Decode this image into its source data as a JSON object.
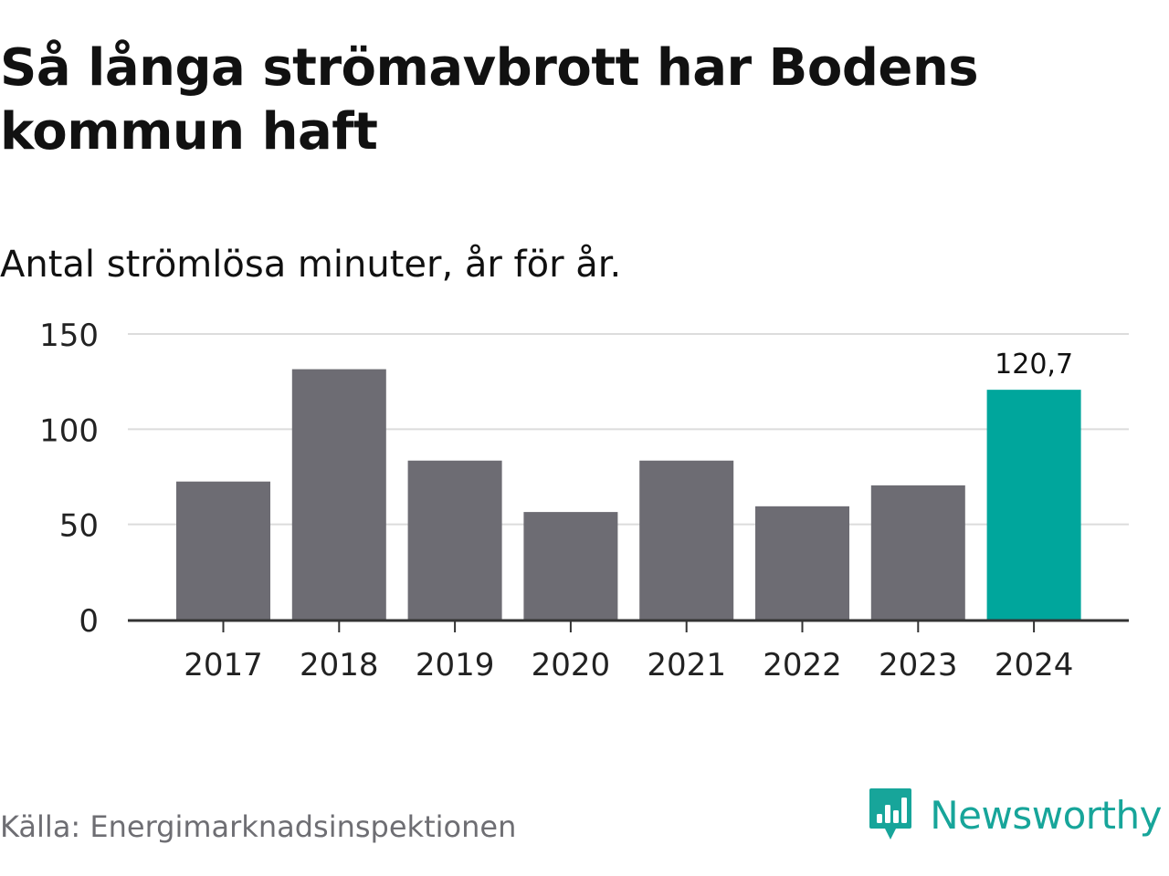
{
  "title": "Så långa strömavbrott har Bodens kommun haft",
  "subtitle": "Antal strömlösa minuter, år för år.",
  "source": "Källa: Energimarknadsinspektionen",
  "brand": {
    "name": "Newsworthy",
    "icon": "newsworthy-logo-icon",
    "color": "#17a59a"
  },
  "colors": {
    "bar_default": "#6d6c73",
    "bar_highlight": "#00a69c",
    "gridline": "#dcdcdc",
    "axis": "#333333",
    "text": "#111111",
    "source_text": "#6e6e73"
  },
  "chart_data": {
    "type": "bar",
    "title": "Så långa strömavbrott har Bodens kommun haft",
    "subtitle": "Antal strömlösa minuter, år för år.",
    "categories": [
      "2017",
      "2018",
      "2019",
      "2020",
      "2021",
      "2022",
      "2023",
      "2024"
    ],
    "values": [
      72.5,
      131.5,
      83.5,
      56.5,
      83.5,
      59.5,
      70.5,
      120.7
    ],
    "highlight_index": 7,
    "data_labels": [
      {
        "index": 7,
        "text": "120,7"
      }
    ],
    "yticks": [
      {
        "value": 0,
        "label": "0"
      },
      {
        "value": 50,
        "label": "50"
      },
      {
        "value": 100,
        "label": "100"
      },
      {
        "value": 150,
        "label": "150"
      }
    ],
    "ylim": [
      0,
      150
    ],
    "grid": true,
    "xlabel": "",
    "ylabel": ""
  }
}
